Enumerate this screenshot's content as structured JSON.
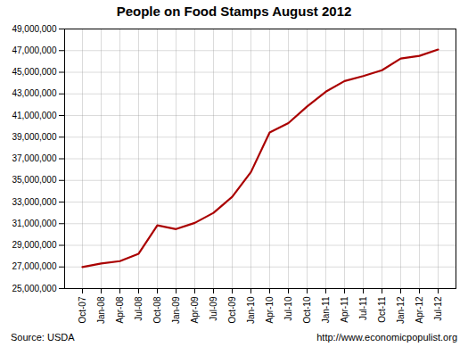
{
  "chart_data": {
    "type": "line",
    "title": "People on Food Stamps August 2012",
    "categories": [
      "Oct-07",
      "Jan-08",
      "Apr-08",
      "Jul-08",
      "Oct-08",
      "Jan-09",
      "Apr-09",
      "Jul-09",
      "Oct-09",
      "Jan-10",
      "Apr-10",
      "Jul-10",
      "Oct-10",
      "Jan-11",
      "Apr-11",
      "Jul-11",
      "Oct-11",
      "Jan-12",
      "Apr-12",
      "Jul-12"
    ],
    "values": [
      26988000,
      27323000,
      27538000,
      28223000,
      30841000,
      30500000,
      31072000,
      32000000,
      33490000,
      35771000,
      39430000,
      40302000,
      41836000,
      43201000,
      44187000,
      44647000,
      45185000,
      46268000,
      46514000,
      47102000
    ],
    "color": "#aa0000",
    "ylim": [
      25000000,
      49000000
    ],
    "yticks": [
      {
        "value": 25000000,
        "label": "25,000,000"
      },
      {
        "value": 27000000,
        "label": "27,000,000"
      },
      {
        "value": 29000000,
        "label": "29,000,000"
      },
      {
        "value": 31000000,
        "label": "31,000,000"
      },
      {
        "value": 33000000,
        "label": "33,000,000"
      },
      {
        "value": 35000000,
        "label": "35,000,000"
      },
      {
        "value": 37000000,
        "label": "37,000,000"
      },
      {
        "value": 39000000,
        "label": "39,000,000"
      },
      {
        "value": 41000000,
        "label": "41,000,000"
      },
      {
        "value": 43000000,
        "label": "43,000,000"
      },
      {
        "value": 45000000,
        "label": "45,000,000"
      },
      {
        "value": 47000000,
        "label": "47,000,000"
      },
      {
        "value": 49000000,
        "label": "49,000,000"
      }
    ],
    "grid": true,
    "annotations": [
      "Source: USDA",
      "http://www.economicpopulist.org"
    ]
  }
}
